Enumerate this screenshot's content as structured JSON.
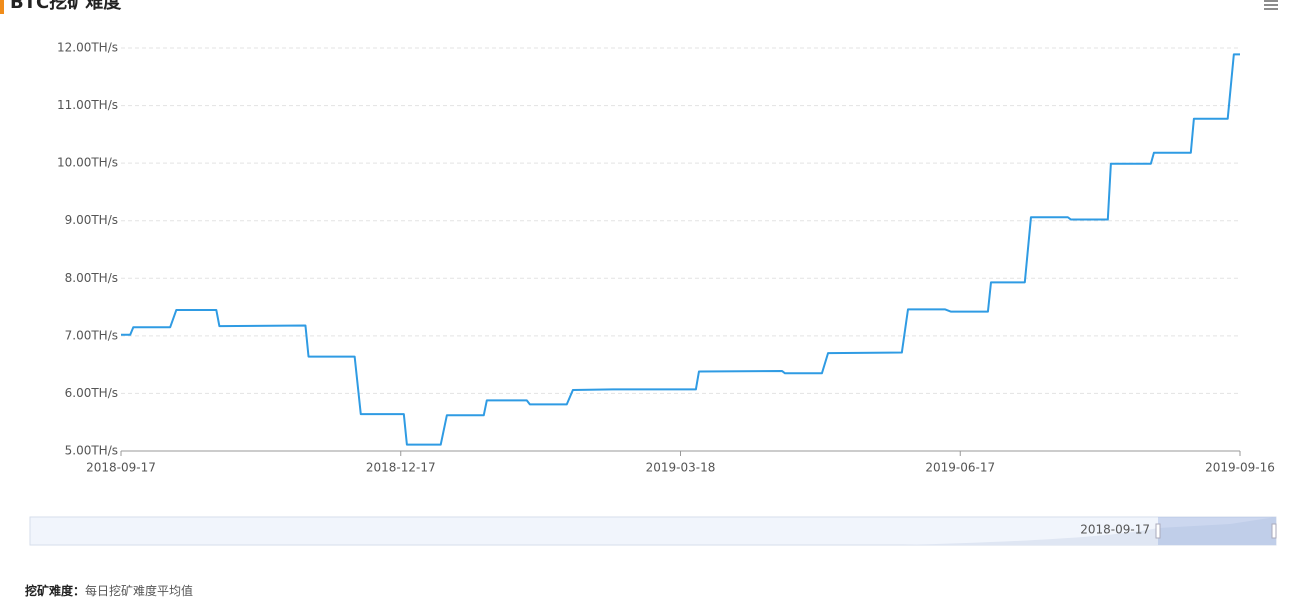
{
  "chart_data": {
    "type": "line",
    "title": "BTC挖矿难度",
    "x": [
      "2018-09-17",
      "2018-09-20",
      "2018-09-21",
      "2018-10-03",
      "2018-10-05",
      "2018-10-18",
      "2018-10-19",
      "2018-11-16",
      "2018-11-17",
      "2018-12-02",
      "2018-12-04",
      "2018-12-18",
      "2018-12-19",
      "2018-12-30",
      "2019-01-01",
      "2019-01-13",
      "2019-01-14",
      "2019-01-27",
      "2019-01-28",
      "2019-02-09",
      "2019-02-11",
      "2019-02-24",
      "2019-03-23",
      "2019-03-24",
      "2019-04-20",
      "2019-04-21",
      "2019-05-03",
      "2019-05-05",
      "2019-05-29",
      "2019-05-31",
      "2019-06-12",
      "2019-06-14",
      "2019-06-26",
      "2019-06-27",
      "2019-07-08",
      "2019-07-10",
      "2019-07-22",
      "2019-07-23",
      "2019-08-04",
      "2019-08-05",
      "2019-08-18",
      "2019-08-19",
      "2019-08-31",
      "2019-09-01",
      "2019-09-12",
      "2019-09-14",
      "2019-09-16"
    ],
    "values": [
      7.02,
      7.02,
      7.15,
      7.15,
      7.45,
      7.45,
      7.17,
      7.18,
      6.64,
      6.64,
      5.64,
      5.64,
      5.11,
      5.11,
      5.62,
      5.62,
      5.88,
      5.88,
      5.81,
      5.81,
      6.06,
      6.07,
      6.07,
      6.38,
      6.39,
      6.35,
      6.35,
      6.7,
      6.71,
      7.46,
      7.46,
      7.42,
      7.42,
      7.93,
      7.93,
      9.06,
      9.06,
      9.02,
      9.02,
      9.99,
      9.99,
      10.18,
      10.18,
      10.77,
      10.77,
      11.89,
      11.89
    ],
    "color": "#2f9be3",
    "xlim": [
      "2018-09-17",
      "2019-09-16"
    ],
    "xticks": [
      "2018-09-17",
      "2018-12-17",
      "2019-03-18",
      "2019-06-17",
      "2019-09-16"
    ],
    "ylim": [
      5,
      12
    ],
    "yticks": [
      {
        "value": 5,
        "label": "5.00TH/s"
      },
      {
        "value": 6,
        "label": "6.00TH/s"
      },
      {
        "value": 7,
        "label": "7.00TH/s"
      },
      {
        "value": 8,
        "label": "8.00TH/s"
      },
      {
        "value": 9,
        "label": "9.00TH/s"
      },
      {
        "value": 10,
        "label": "10.00TH/s"
      },
      {
        "value": 11,
        "label": "11.00TH/s"
      },
      {
        "value": 12,
        "label": "12.00TH/s"
      }
    ],
    "grid": true
  },
  "data_zoom": {
    "start_label": "2018-09-17"
  },
  "footnote": {
    "term": "挖矿难度：",
    "text": "每日挖矿难度平均值"
  }
}
